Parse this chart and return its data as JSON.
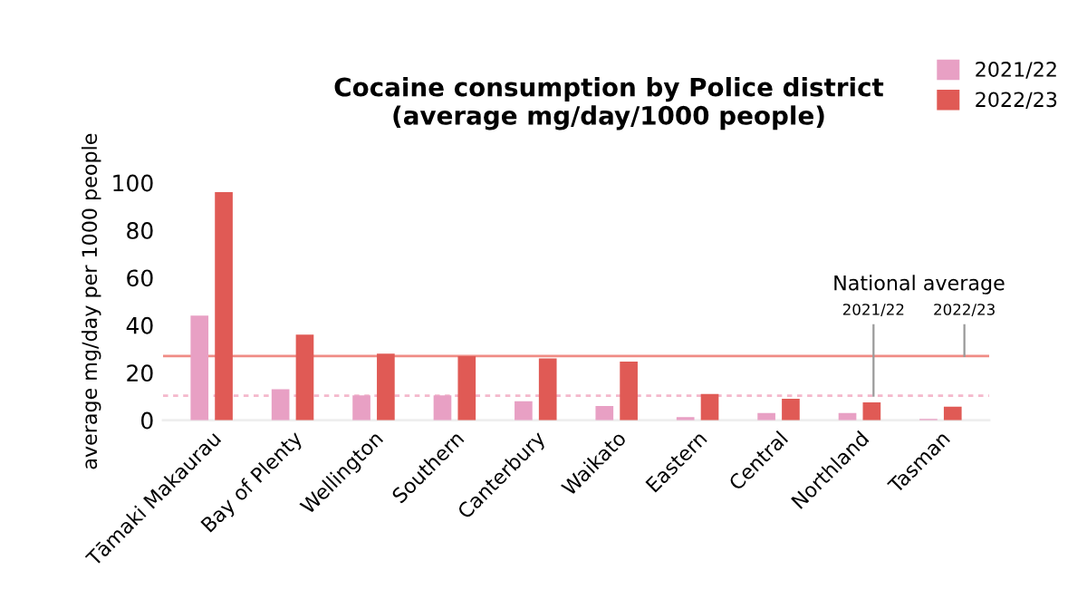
{
  "chart_data": {
    "type": "bar",
    "title": "Cocaine consumption by Police district\n(average mg/day/1000 people)",
    "ylabel": "average mg/day per 1000 people",
    "categories": [
      "Tāmaki Makaurau",
      "Bay of Plenty",
      "Wellington",
      "Southern",
      "Canterbury",
      "Waikato",
      "Eastern",
      "Central",
      "Northland",
      "Tasman"
    ],
    "series": [
      {
        "name": "2021/22",
        "color": "#e8a0c4",
        "values": [
          44,
          13,
          10.5,
          10.5,
          8,
          6,
          1.3,
          3,
          3,
          0.5
        ]
      },
      {
        "name": "2022/23",
        "color": "#e05a55",
        "values": [
          96,
          36,
          28,
          27,
          26,
          24.7,
          11,
          9,
          7.5,
          5.7
        ]
      }
    ],
    "ylim": [
      0,
      100
    ],
    "yticks": [
      0,
      20,
      40,
      60,
      80,
      100
    ],
    "ref_lines": [
      {
        "axis": "y",
        "value": 10.3,
        "color": "#f4b8cc",
        "line_style": "dashed"
      },
      {
        "axis": "y",
        "value": 27,
        "color": "#f08c85",
        "line_style": "solid"
      }
    ],
    "annotations": [
      "National average",
      {
        "text": "2021/22",
        "y": 10.3
      },
      {
        "text": "2022/23",
        "y": 27
      }
    ],
    "grid": false,
    "legend": "top right"
  }
}
